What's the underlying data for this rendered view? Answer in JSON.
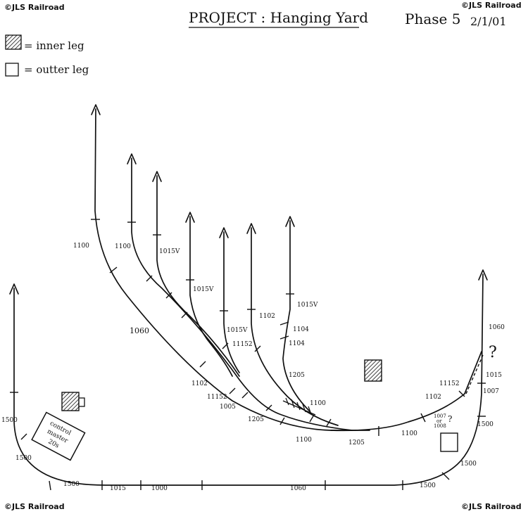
{
  "watermarks": {
    "top_left": "©JLS Railroad",
    "top_right": "©JLS Railroad",
    "bottom_left": "©JLS Railroad",
    "bottom_right": "©JLS Railroad"
  },
  "header": {
    "title": "PROJECT : Hanging Yard",
    "phase": "Phase 5",
    "date": "2/1/01"
  },
  "legend": {
    "inner": "= inner leg",
    "outer": "= outter leg"
  },
  "control_box": {
    "line1": "control",
    "line2": "master",
    "line3": "20s"
  },
  "question_marks": {
    "right": "?",
    "small": "?"
  },
  "labels": {
    "l1100_left": "1100",
    "l1100_b": "1100",
    "l1015v_a": "1015V",
    "l1015v_b": "1015V",
    "l1015v_c": "1015V",
    "l1060_mid": "1060",
    "l1015v_d": "1015V",
    "l1102_top": "1102",
    "l1104_a": "1104",
    "l1104_b": "1104",
    "l11152_a": "11152",
    "l1205_a": "1205",
    "l1102_b": "1102",
    "l11152_b": "11152",
    "l1005": "1005",
    "l1205_b": "1205",
    "l1100_c": "1100",
    "l1100_d": "1100",
    "l1205_c": "1205",
    "l1100_e": "1100",
    "l1102_c": "1102",
    "l11152_c": "11152",
    "l1007_a": "1007",
    "l1007_or": "or",
    "l1008": "1008",
    "l1060_right": "1060",
    "l1015_right": "1015",
    "l1007_right": "1007",
    "l1500_right": "1500",
    "l1500_br": "1500",
    "l1500_left": "1500",
    "l1500_l2": "1500",
    "l1500_bl": "1500",
    "l1015_bottom": "1015",
    "l1000": "1000",
    "l1060_bottom": "1060",
    "l1500_bottom": "1500"
  }
}
